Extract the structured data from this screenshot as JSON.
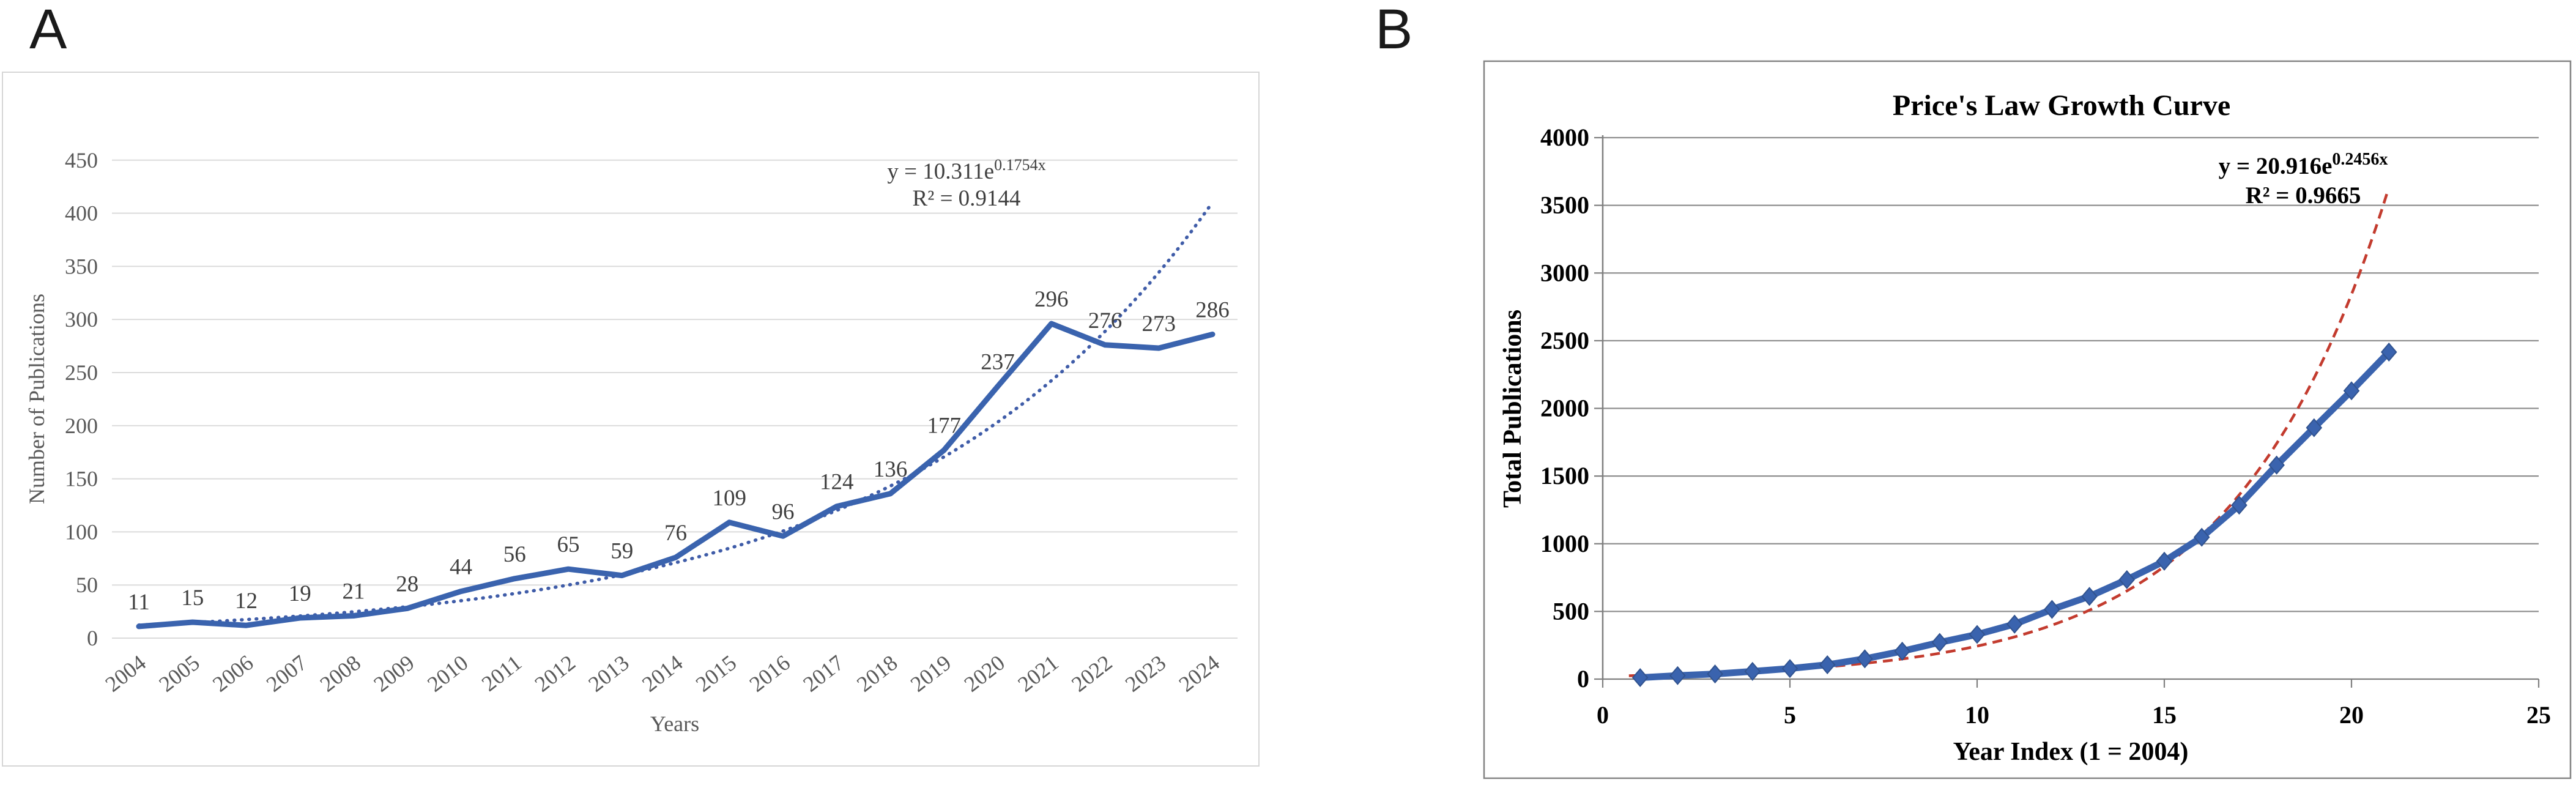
{
  "figure": {
    "panel_a_letter": "A",
    "panel_b_letter": "B"
  },
  "colors": {
    "blue_line": "#3A63AE",
    "blue_trend_dotted": "#3F5CA8",
    "diamond_fill": "#3A63AE",
    "diamond_edge": "#31538F",
    "red_fit_dashed": "#C33B2E",
    "grid_light": "#DBDBDB",
    "grid_dark": "#8F8F8F",
    "axis_dark": "#7F7F7F",
    "box_light": "#D6D6D6",
    "box_dark": "#838383",
    "text_gray": "#595959",
    "label_gray": "#3F3F3F",
    "text_black": "#000000"
  },
  "panel_a": {
    "y_axis_title": "Number of Publications",
    "x_axis_title": "Years",
    "equation_base": "y = 10.311e",
    "equation_sup": "0.1754x",
    "r_squared": "R² = 0.9144"
  },
  "panel_b": {
    "title": "Price's Law Growth Curve",
    "y_axis_title": "Total Publications",
    "x_axis_title": "Year Index (1 = 2004)",
    "equation_base": "y = 20.916e",
    "equation_sup": "0.2456x",
    "r_squared": "R² = 0.9665"
  },
  "chart_data": [
    {
      "type": "line",
      "title": "",
      "xlabel": "Years",
      "ylabel": "Number of Publications",
      "categories": [
        2004,
        2005,
        2006,
        2007,
        2008,
        2009,
        2010,
        2011,
        2012,
        2013,
        2014,
        2015,
        2016,
        2017,
        2018,
        2019,
        2020,
        2021,
        2022,
        2023,
        2024
      ],
      "values": [
        11,
        15,
        12,
        19,
        21,
        28,
        44,
        56,
        65,
        59,
        76,
        109,
        96,
        124,
        136,
        177,
        237,
        296,
        276,
        273,
        286
      ],
      "data_labels_shown": true,
      "ylim": [
        0,
        450
      ],
      "ytick_step": 50,
      "grid": "horizontal",
      "trendline": {
        "type": "exponential",
        "a": 10.311,
        "b": 0.1754,
        "r2": 0.9144,
        "style": "dotted-blue"
      }
    },
    {
      "type": "line",
      "title": "Price's Law Growth Curve",
      "xlabel": "Year Index (1 = 2004)",
      "ylabel": "Total Publications",
      "x": [
        1,
        2,
        3,
        4,
        5,
        6,
        7,
        8,
        9,
        10,
        11,
        12,
        13,
        14,
        15,
        16,
        17,
        18,
        19,
        20,
        21
      ],
      "values": [
        11,
        26,
        38,
        57,
        78,
        106,
        150,
        206,
        271,
        330,
        406,
        515,
        611,
        735,
        871,
        1048,
        1285,
        1581,
        1857,
        2130,
        2416
      ],
      "marker": "diamond",
      "xlim": [
        0,
        25
      ],
      "ylim": [
        0,
        4000
      ],
      "xtick_step": 5,
      "ytick_step": 500,
      "grid": "horizontal",
      "fit_curve": {
        "type": "exponential",
        "a": 20.916,
        "b": 0.2456,
        "r2": 0.9665,
        "style": "dashed-red"
      }
    }
  ]
}
